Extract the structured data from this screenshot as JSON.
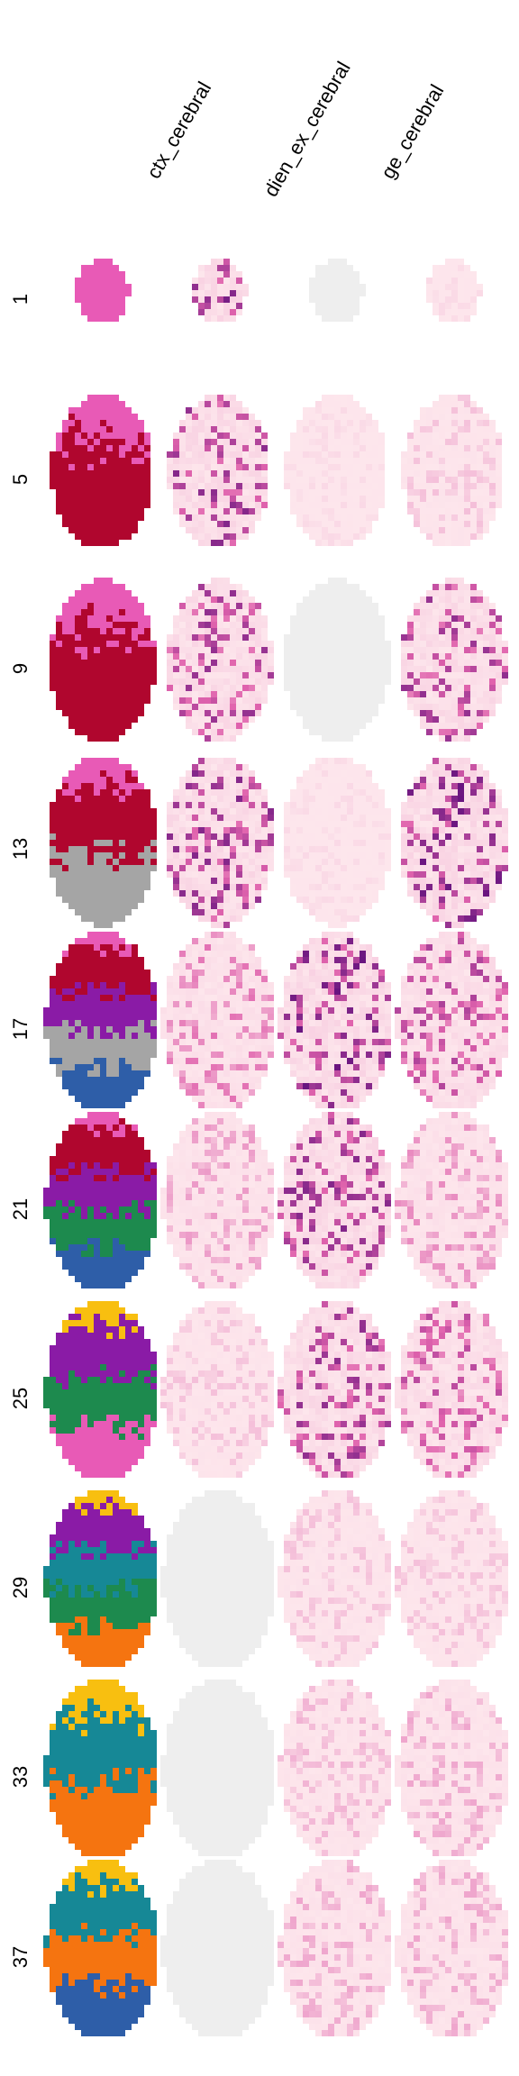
{
  "columns": [
    {
      "label": "ctx_cerebral"
    },
    {
      "label": "dien_ex_cerebral"
    },
    {
      "label": "ge_cerebral"
    }
  ],
  "colors": {
    "background_cell": "#eeeeee",
    "low": "#fde6ec",
    "mid": "#e063ad",
    "high": "#5a0b7a",
    "region_pink": "#e85ab6",
    "region_crimson": "#b0062e",
    "region_purple": "#8a1ba6",
    "region_green": "#1d8a4e",
    "region_yellow": "#f8bf10",
    "region_teal": "#168896",
    "region_orange": "#f57410",
    "region_blue": "#2e5ea8",
    "region_gray": "#a5a5a5"
  },
  "rows": [
    {
      "label": "1",
      "regions": [
        "region_pink"
      ],
      "ctx": 0.9,
      "dien": 0.0,
      "ge": 0.05
    },
    {
      "label": "5",
      "regions": [
        "region_pink",
        "region_crimson"
      ],
      "ctx": 0.85,
      "dien": 0.05,
      "ge": 0.15
    },
    {
      "label": "9",
      "regions": [
        "region_pink",
        "region_crimson"
      ],
      "ctx": 0.8,
      "dien": 0.0,
      "ge": 0.8
    },
    {
      "label": "13",
      "regions": [
        "region_pink",
        "region_crimson",
        "region_gray"
      ],
      "ctx": 0.85,
      "dien": 0.05,
      "ge": 0.95
    },
    {
      "label": "17",
      "regions": [
        "region_pink",
        "region_crimson",
        "region_purple",
        "region_gray",
        "region_blue"
      ],
      "ctx": 0.45,
      "dien": 0.95,
      "ge": 0.7
    },
    {
      "label": "21",
      "regions": [
        "region_pink",
        "region_crimson",
        "region_purple",
        "region_green",
        "region_blue"
      ],
      "ctx": 0.3,
      "dien": 0.85,
      "ge": 0.35
    },
    {
      "label": "25",
      "regions": [
        "region_yellow",
        "region_purple",
        "region_green",
        "region_pink"
      ],
      "ctx": 0.15,
      "dien": 0.8,
      "ge": 0.65
    },
    {
      "label": "29",
      "regions": [
        "region_yellow",
        "region_purple",
        "region_teal",
        "region_green",
        "region_orange"
      ],
      "ctx": 0.0,
      "dien": 0.15,
      "ge": 0.15
    },
    {
      "label": "33",
      "regions": [
        "region_yellow",
        "region_teal",
        "region_orange"
      ],
      "ctx": 0.0,
      "dien": 0.2,
      "ge": 0.25
    },
    {
      "label": "37",
      "regions": [
        "region_yellow",
        "region_teal",
        "region_orange",
        "region_blue"
      ],
      "ctx": 0.0,
      "dien": 0.25,
      "ge": 0.25
    }
  ]
}
